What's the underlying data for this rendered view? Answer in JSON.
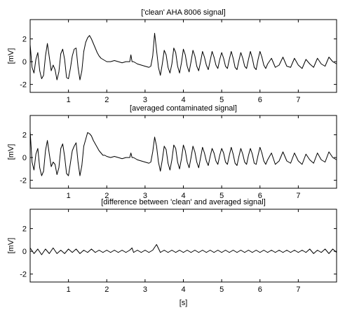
{
  "chart_data": [
    {
      "type": "line",
      "title": "['clean' AHA 8006 signal]",
      "ylabel": "[mV]",
      "xlabel": "",
      "xlim": [
        0,
        8
      ],
      "ylim": [
        -2.7,
        3.7
      ],
      "xticks": [
        1,
        2,
        3,
        4,
        5,
        6,
        7
      ],
      "yticks": [
        -2,
        0,
        2
      ],
      "grid": false,
      "series": [
        {
          "x": [
            0.0,
            0.05,
            0.1,
            0.15,
            0.2,
            0.25,
            0.3,
            0.35,
            0.4,
            0.45,
            0.5,
            0.55,
            0.6,
            0.65,
            0.7,
            0.75,
            0.8,
            0.85,
            0.9,
            0.95,
            1.0,
            1.05,
            1.1,
            1.15,
            1.2,
            1.25,
            1.3,
            1.35,
            1.4,
            1.45,
            1.5,
            1.55,
            1.6,
            1.65,
            1.7,
            1.75,
            1.8,
            1.85,
            1.9,
            1.95,
            2.0,
            2.1,
            2.2,
            2.3,
            2.4,
            2.5,
            2.6,
            2.63,
            2.66,
            2.7,
            2.8,
            2.9,
            3.0,
            3.1,
            3.15,
            3.2,
            3.25,
            3.3,
            3.35,
            3.4,
            3.45,
            3.5,
            3.55,
            3.6,
            3.65,
            3.7,
            3.75,
            3.8,
            3.85,
            3.9,
            3.95,
            4.0,
            4.05,
            4.1,
            4.15,
            4.2,
            4.25,
            4.3,
            4.35,
            4.4,
            4.45,
            4.5,
            4.55,
            4.6,
            4.65,
            4.7,
            4.75,
            4.8,
            4.85,
            4.9,
            4.95,
            5.0,
            5.05,
            5.1,
            5.15,
            5.2,
            5.25,
            5.3,
            5.35,
            5.4,
            5.45,
            5.5,
            5.55,
            5.6,
            5.65,
            5.7,
            5.75,
            5.8,
            5.85,
            5.9,
            5.95,
            6.0,
            6.05,
            6.1,
            6.15,
            6.2,
            6.3,
            6.4,
            6.5,
            6.6,
            6.7,
            6.8,
            6.9,
            7.0,
            7.1,
            7.2,
            7.3,
            7.4,
            7.5,
            7.6,
            7.7,
            7.8,
            7.9,
            8.0
          ],
          "y": [
            1.5,
            -0.5,
            -1.0,
            0.2,
            0.8,
            -0.8,
            -1.5,
            -1.2,
            0.5,
            1.6,
            0.4,
            -0.8,
            -0.3,
            -0.7,
            -1.6,
            -0.9,
            0.7,
            1.1,
            0.2,
            -1.4,
            -1.5,
            -0.6,
            0.5,
            1.1,
            1.2,
            -0.5,
            -1.6,
            -0.8,
            0.9,
            1.7,
            2.1,
            2.3,
            2.0,
            1.6,
            1.2,
            0.8,
            0.5,
            0.3,
            0.2,
            0.1,
            0.0,
            0.0,
            0.1,
            0.0,
            -0.1,
            0.0,
            0.0,
            0.6,
            0.0,
            0.0,
            -0.2,
            -0.3,
            -0.4,
            -0.5,
            -0.4,
            0.5,
            2.5,
            1.0,
            -0.5,
            -1.2,
            -0.2,
            1.0,
            0.6,
            -0.5,
            -1.0,
            -0.2,
            1.2,
            0.8,
            -0.4,
            -1.0,
            -0.1,
            1.1,
            0.6,
            -0.4,
            -0.9,
            0.0,
            1.0,
            0.5,
            -0.4,
            -0.8,
            0.0,
            0.9,
            0.4,
            -0.3,
            -0.7,
            0.1,
            0.9,
            0.4,
            -0.3,
            -0.6,
            0.2,
            0.8,
            0.3,
            -0.4,
            -0.6,
            0.2,
            0.9,
            0.3,
            -0.5,
            -0.7,
            0.1,
            0.8,
            0.3,
            -0.4,
            -0.6,
            0.2,
            0.9,
            0.3,
            -0.5,
            -0.7,
            0.2,
            0.9,
            0.4,
            -0.3,
            -0.6,
            -0.2,
            0.3,
            -0.5,
            -0.3,
            0.4,
            -0.4,
            -0.5,
            0.3,
            -0.3,
            -0.6,
            0.2,
            -0.2,
            -0.5,
            0.3,
            -0.2,
            -0.4,
            0.4,
            0.0,
            -0.2
          ]
        }
      ]
    },
    {
      "type": "line",
      "title": "[averaged contaminated signal]",
      "ylabel": "[mV]",
      "xlabel": "",
      "xlim": [
        0,
        8
      ],
      "ylim": [
        -2.7,
        3.7
      ],
      "xticks": [
        1,
        2,
        3,
        4,
        5,
        6,
        7
      ],
      "yticks": [
        -2,
        0,
        2
      ],
      "grid": false,
      "series": [
        {
          "x": [
            0.0,
            0.05,
            0.1,
            0.15,
            0.2,
            0.25,
            0.3,
            0.35,
            0.4,
            0.45,
            0.5,
            0.55,
            0.6,
            0.65,
            0.7,
            0.75,
            0.8,
            0.85,
            0.9,
            0.95,
            1.0,
            1.05,
            1.1,
            1.15,
            1.2,
            1.25,
            1.3,
            1.35,
            1.4,
            1.45,
            1.5,
            1.55,
            1.6,
            1.65,
            1.7,
            1.75,
            1.8,
            1.85,
            1.9,
            1.95,
            2.0,
            2.1,
            2.2,
            2.3,
            2.4,
            2.5,
            2.6,
            2.63,
            2.66,
            2.7,
            2.8,
            2.9,
            3.0,
            3.1,
            3.15,
            3.2,
            3.25,
            3.3,
            3.35,
            3.4,
            3.45,
            3.5,
            3.55,
            3.6,
            3.65,
            3.7,
            3.75,
            3.8,
            3.85,
            3.9,
            3.95,
            4.0,
            4.05,
            4.1,
            4.15,
            4.2,
            4.25,
            4.3,
            4.35,
            4.4,
            4.45,
            4.5,
            4.55,
            4.6,
            4.65,
            4.7,
            4.75,
            4.8,
            4.85,
            4.9,
            4.95,
            5.0,
            5.05,
            5.1,
            5.15,
            5.2,
            5.25,
            5.3,
            5.35,
            5.4,
            5.45,
            5.5,
            5.55,
            5.6,
            5.65,
            5.7,
            5.75,
            5.8,
            5.85,
            5.9,
            5.95,
            6.0,
            6.05,
            6.1,
            6.15,
            6.2,
            6.3,
            6.4,
            6.5,
            6.6,
            6.7,
            6.8,
            6.9,
            7.0,
            7.1,
            7.2,
            7.3,
            7.4,
            7.5,
            7.6,
            7.7,
            7.8,
            7.9,
            8.0
          ],
          "y": [
            2.3,
            -0.4,
            -1.1,
            0.3,
            0.8,
            -0.9,
            -1.6,
            -1.2,
            0.6,
            1.5,
            0.3,
            -0.8,
            -0.4,
            -0.6,
            -1.5,
            -0.9,
            0.8,
            1.2,
            0.1,
            -1.4,
            -1.6,
            -0.5,
            0.6,
            1.0,
            1.3,
            -0.4,
            -1.6,
            -0.7,
            1.0,
            1.6,
            2.2,
            2.1,
            1.9,
            1.5,
            1.2,
            0.9,
            0.6,
            0.4,
            0.2,
            0.2,
            0.1,
            0.0,
            0.1,
            0.0,
            -0.1,
            0.0,
            0.0,
            0.4,
            0.0,
            0.0,
            -0.2,
            -0.3,
            -0.4,
            -0.5,
            -0.4,
            0.5,
            1.8,
            1.0,
            -0.4,
            -1.2,
            -0.2,
            1.0,
            0.7,
            -0.5,
            -1.1,
            -0.2,
            1.1,
            0.8,
            -0.4,
            -1.0,
            -0.1,
            1.1,
            0.6,
            -0.4,
            -0.9,
            0.0,
            1.0,
            0.5,
            -0.4,
            -0.9,
            0.0,
            0.9,
            0.4,
            -0.3,
            -0.7,
            0.1,
            0.8,
            0.4,
            -0.3,
            -0.6,
            0.2,
            0.8,
            0.4,
            -0.4,
            -0.6,
            0.2,
            0.9,
            0.3,
            -0.5,
            -0.7,
            0.1,
            0.8,
            0.3,
            -0.4,
            -0.6,
            0.2,
            0.8,
            0.3,
            -0.5,
            -0.6,
            0.2,
            0.9,
            0.4,
            -0.3,
            -0.6,
            -0.2,
            0.4,
            -0.6,
            -0.3,
            0.5,
            -0.3,
            -0.5,
            0.4,
            -0.3,
            -0.6,
            0.3,
            -0.2,
            -0.5,
            0.4,
            -0.2,
            -0.4,
            0.5,
            0.0,
            -0.2
          ]
        }
      ]
    },
    {
      "type": "line",
      "title": "[difference between 'clean' and averaged signal]",
      "ylabel": "[mV]",
      "xlabel": "[s]",
      "xlim": [
        0,
        8
      ],
      "ylim": [
        -2.7,
        3.7
      ],
      "xticks": [
        1,
        2,
        3,
        4,
        5,
        6,
        7
      ],
      "yticks": [
        -2,
        0,
        2
      ],
      "grid": false,
      "series": [
        {
          "x": [
            0.0,
            0.1,
            0.2,
            0.3,
            0.4,
            0.5,
            0.6,
            0.7,
            0.8,
            0.9,
            1.0,
            1.1,
            1.2,
            1.3,
            1.4,
            1.5,
            1.6,
            1.7,
            1.8,
            1.9,
            2.0,
            2.1,
            2.2,
            2.3,
            2.4,
            2.5,
            2.6,
            2.66,
            2.7,
            2.8,
            2.9,
            3.0,
            3.1,
            3.2,
            3.3,
            3.4,
            3.5,
            3.6,
            3.7,
            3.8,
            3.9,
            4.0,
            4.1,
            4.2,
            4.3,
            4.4,
            4.5,
            4.6,
            4.7,
            4.8,
            4.9,
            5.0,
            5.1,
            5.2,
            5.3,
            5.4,
            5.5,
            5.6,
            5.7,
            5.8,
            5.9,
            6.0,
            6.1,
            6.2,
            6.3,
            6.4,
            6.5,
            6.6,
            6.7,
            6.8,
            6.9,
            7.0,
            7.1,
            7.2,
            7.3,
            7.4,
            7.5,
            7.6,
            7.7,
            7.8,
            7.9,
            8.0
          ],
          "y": [
            0.3,
            -0.2,
            0.2,
            -0.3,
            0.2,
            -0.2,
            0.3,
            -0.2,
            0.1,
            -0.2,
            0.2,
            -0.1,
            0.2,
            -0.2,
            0.1,
            -0.1,
            0.2,
            -0.1,
            0.1,
            -0.1,
            0.1,
            -0.1,
            0.1,
            -0.1,
            0.1,
            -0.1,
            0.1,
            0.3,
            -0.1,
            0.1,
            -0.1,
            0.1,
            -0.1,
            0.1,
            0.6,
            -0.1,
            0.1,
            -0.1,
            0.1,
            -0.1,
            0.1,
            -0.1,
            0.1,
            -0.1,
            0.1,
            -0.1,
            0.1,
            -0.1,
            0.1,
            -0.1,
            0.1,
            -0.1,
            0.1,
            -0.1,
            0.1,
            -0.1,
            0.1,
            -0.1,
            0.1,
            -0.1,
            0.1,
            -0.1,
            0.1,
            -0.1,
            0.1,
            -0.1,
            0.1,
            -0.1,
            0.1,
            -0.1,
            0.1,
            -0.1,
            0.1,
            -0.1,
            0.2,
            -0.2,
            0.1,
            -0.1,
            0.2,
            -0.2,
            0.2,
            -0.1
          ]
        }
      ]
    }
  ]
}
